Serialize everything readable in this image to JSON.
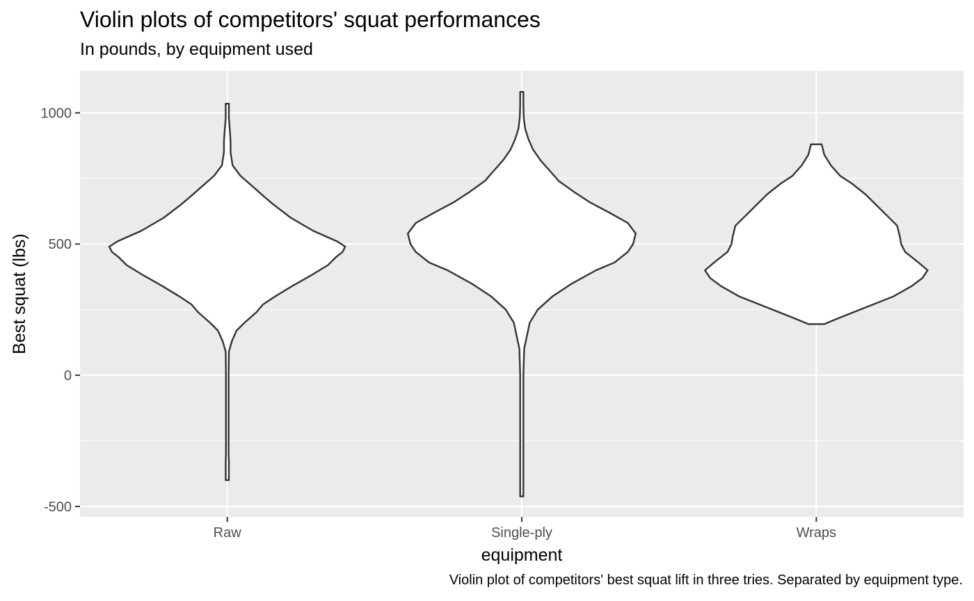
{
  "chart_data": {
    "type": "violin",
    "title": "Violin plots of competitors' squat performances",
    "subtitle": "In pounds, by equipment used",
    "caption": "Violin plot of competitors' best squat lift in three tries. Separated by equipment type.",
    "xlabel": "equipment",
    "ylabel": "Best squat (lbs)",
    "categories": [
      "Raw",
      "Single-ply",
      "Wraps"
    ],
    "ylim": [
      -540,
      1160
    ],
    "yticks": [
      -500,
      0,
      500,
      1000
    ],
    "ytick_labels": [
      "-500",
      "0",
      "500",
      "1000"
    ],
    "grid": true,
    "fill_color": "#ffffff",
    "outline_color": "#333333",
    "panel_color": "#ebebeb",
    "grid_color": "#ffffff",
    "violins": [
      {
        "category": "Raw",
        "min": -400,
        "max": 1035,
        "density": [
          [
            -400,
            0.012
          ],
          [
            -330,
            0.012
          ],
          [
            -300,
            0.01
          ],
          [
            0,
            0.01
          ],
          [
            90,
            0.012
          ],
          [
            130,
            0.035
          ],
          [
            170,
            0.07
          ],
          [
            200,
            0.13
          ],
          [
            240,
            0.22
          ],
          [
            270,
            0.27
          ],
          [
            300,
            0.36
          ],
          [
            340,
            0.49
          ],
          [
            380,
            0.63
          ],
          [
            420,
            0.76
          ],
          [
            450,
            0.82
          ],
          [
            470,
            0.87
          ],
          [
            490,
            0.89
          ],
          [
            510,
            0.83
          ],
          [
            550,
            0.65
          ],
          [
            600,
            0.48
          ],
          [
            650,
            0.35
          ],
          [
            680,
            0.28
          ],
          [
            720,
            0.19
          ],
          [
            760,
            0.1
          ],
          [
            800,
            0.04
          ],
          [
            850,
            0.025
          ],
          [
            890,
            0.025
          ],
          [
            930,
            0.02
          ],
          [
            980,
            0.012
          ],
          [
            1035,
            0.012
          ]
        ]
      },
      {
        "category": "Single-ply",
        "min": -462,
        "max": 1080,
        "density": [
          [
            -462,
            0.012
          ],
          [
            0,
            0.012
          ],
          [
            100,
            0.018
          ],
          [
            200,
            0.06
          ],
          [
            250,
            0.12
          ],
          [
            300,
            0.23
          ],
          [
            350,
            0.38
          ],
          [
            400,
            0.56
          ],
          [
            430,
            0.7
          ],
          [
            470,
            0.8
          ],
          [
            500,
            0.84
          ],
          [
            540,
            0.86
          ],
          [
            580,
            0.8
          ],
          [
            620,
            0.66
          ],
          [
            660,
            0.51
          ],
          [
            700,
            0.39
          ],
          [
            740,
            0.28
          ],
          [
            780,
            0.21
          ],
          [
            820,
            0.14
          ],
          [
            860,
            0.085
          ],
          [
            900,
            0.05
          ],
          [
            940,
            0.025
          ],
          [
            980,
            0.015
          ],
          [
            1030,
            0.012
          ],
          [
            1080,
            0.012
          ]
        ]
      },
      {
        "category": "Wraps",
        "min": 195,
        "max": 880,
        "density": [
          [
            195,
            0.06
          ],
          [
            220,
            0.18
          ],
          [
            260,
            0.38
          ],
          [
            300,
            0.58
          ],
          [
            340,
            0.72
          ],
          [
            370,
            0.8
          ],
          [
            400,
            0.84
          ],
          [
            430,
            0.77
          ],
          [
            470,
            0.67
          ],
          [
            500,
            0.64
          ],
          [
            530,
            0.63
          ],
          [
            570,
            0.61
          ],
          [
            610,
            0.53
          ],
          [
            650,
            0.45
          ],
          [
            690,
            0.37
          ],
          [
            730,
            0.27
          ],
          [
            760,
            0.18
          ],
          [
            800,
            0.11
          ],
          [
            840,
            0.06
          ],
          [
            880,
            0.04
          ]
        ]
      }
    ]
  }
}
